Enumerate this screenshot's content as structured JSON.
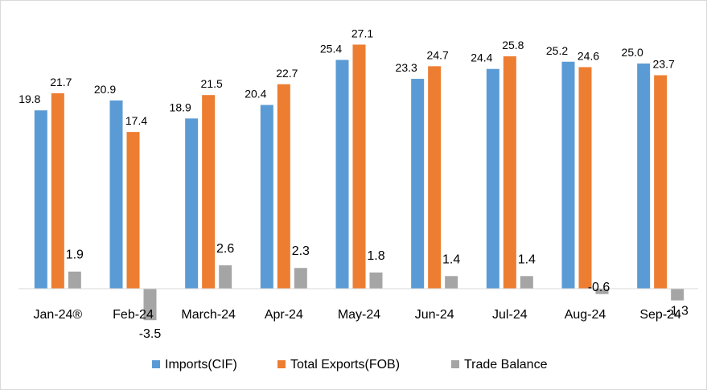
{
  "chart_data": {
    "type": "bar",
    "categories": [
      "Jan-24®",
      "Feb-24",
      "March-24",
      "Apr-24",
      "May-24",
      "Jun-24",
      "Jul-24",
      "Aug-24",
      "Sep-24"
    ],
    "series": [
      {
        "name": "Imports(CIF)",
        "color": "#5B9BD5",
        "values": [
          19.8,
          20.9,
          18.9,
          20.4,
          25.4,
          23.3,
          24.4,
          25.2,
          25.0
        ]
      },
      {
        "name": "Total Exports(FOB)",
        "color": "#ED7D31",
        "values": [
          21.7,
          17.4,
          21.5,
          22.7,
          27.1,
          24.7,
          25.8,
          24.6,
          23.7
        ]
      },
      {
        "name": "Trade Balance",
        "color": "#A5A5A5",
        "values": [
          1.9,
          -3.5,
          2.6,
          2.3,
          1.8,
          1.4,
          1.4,
          -0.6,
          -1.3
        ]
      }
    ],
    "value_labels": [
      [
        "19.8",
        "20.9",
        "18.9",
        "20.4",
        "25.4",
        "23.3",
        "24.4",
        "25.2",
        "25.0"
      ],
      [
        "21.7",
        "17.4",
        "21.5",
        "22.7",
        "27.1",
        "24.7",
        "25.8",
        "24.6",
        "23.7"
      ],
      [
        "1.9",
        "-3.5",
        "2.6",
        "2.3",
        "1.8",
        "1.4",
        "1.4",
        "-0.6",
        "-1.3"
      ]
    ],
    "title": "",
    "xlabel": "",
    "ylabel": "",
    "ylim": [
      -3.5,
      28.5
    ],
    "grid": false,
    "legend": "bottom"
  }
}
